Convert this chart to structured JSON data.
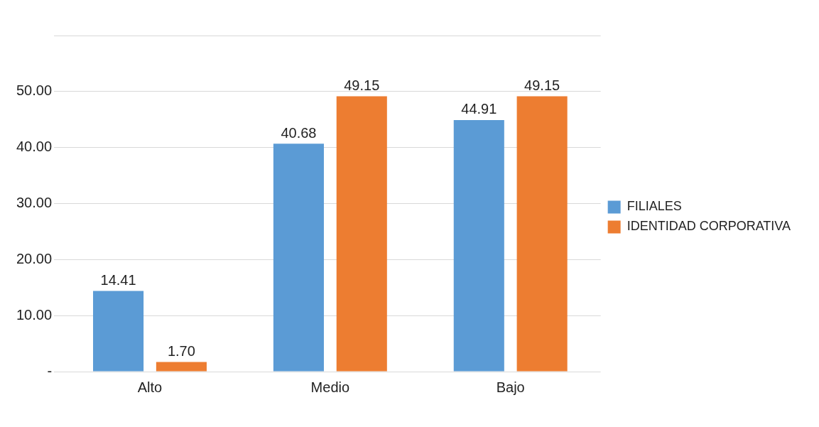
{
  "chart_data": {
    "type": "bar",
    "categories": [
      "Alto",
      "Medio",
      "Bajo"
    ],
    "series": [
      {
        "name": "FILIALES",
        "color": "#5b9bd5",
        "values": [
          14.41,
          40.68,
          44.91
        ],
        "value_labels": [
          "14.41",
          "40.68",
          "44.91"
        ]
      },
      {
        "name": "IDENTIDAD CORPORATIVA",
        "color": "#ed7d31",
        "values": [
          1.7,
          49.15,
          49.15
        ],
        "value_labels": [
          "1.70",
          "49.15",
          "49.15"
        ]
      }
    ],
    "ylim": [
      0,
      60
    ],
    "yticks": [
      {
        "value": 0,
        "label": "-"
      },
      {
        "value": 10,
        "label": "10.00"
      },
      {
        "value": 20,
        "label": "20.00"
      },
      {
        "value": 30,
        "label": "30.00"
      },
      {
        "value": 40,
        "label": "40.00"
      },
      {
        "value": 50,
        "label": "50.00"
      },
      {
        "value": 60,
        "label": null
      }
    ],
    "grid": "y",
    "legend": "right"
  }
}
